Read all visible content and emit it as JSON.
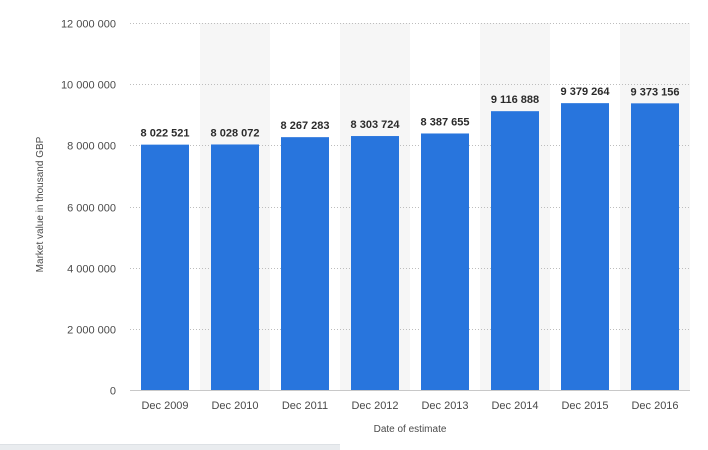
{
  "chart_data": {
    "type": "bar",
    "categories": [
      "Dec 2009",
      "Dec 2010",
      "Dec 2011",
      "Dec 2012",
      "Dec 2013",
      "Dec 2014",
      "Dec 2015",
      "Dec 2016"
    ],
    "values": [
      8022521,
      8028072,
      8267283,
      8303724,
      8387655,
      9116888,
      9379264,
      9373156
    ],
    "value_labels": [
      "8 022 521",
      "8 028 072",
      "8 267 283",
      "8 303 724",
      "8 387 655",
      "9 116 888",
      "9 379 264",
      "9 373 156"
    ],
    "title": "",
    "xlabel": "Date of estimate",
    "ylabel": "Market value in thousand GBP",
    "ylim": [
      0,
      12000000
    ],
    "yticks": [
      0,
      2000000,
      4000000,
      6000000,
      8000000,
      10000000,
      12000000
    ],
    "ytick_labels": [
      "0",
      "2 000 000",
      "4 000 000",
      "6 000 000",
      "8 000 000",
      "10 000 000",
      "12 000 000"
    ],
    "grid": true,
    "bar_color": "#2875dd",
    "alternate_band_color": "#f6f6f6"
  }
}
